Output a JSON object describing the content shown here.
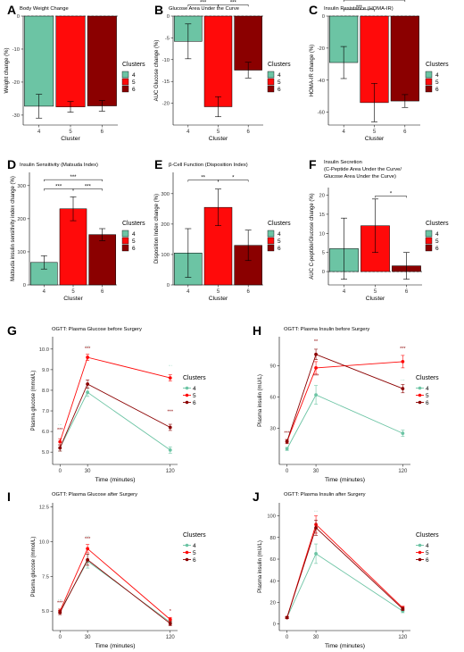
{
  "palette": {
    "c4": "#6cc4a4",
    "c5": "#ff0a0a",
    "c6": "#8b0000"
  },
  "cluster_names": [
    "4",
    "5",
    "6"
  ],
  "legend_title": "Clusters",
  "chart_data": [
    {
      "id": "A",
      "type": "bar",
      "letter": "A",
      "title": "Body Weight Change",
      "title2": "",
      "title3": "",
      "xlabel": "Cluster",
      "ylabel": "Weight change (%)",
      "categories": [
        "4",
        "5",
        "6"
      ],
      "values": [
        -27.3,
        -27.5,
        -27.2
      ],
      "errors": [
        3.6,
        1.6,
        1.6
      ],
      "ylim": [
        -33,
        0
      ],
      "yticks": [
        0,
        -10,
        -20,
        -30
      ],
      "zero_line": true,
      "legend_position": "right",
      "significance": []
    },
    {
      "id": "B",
      "type": "bar",
      "letter": "B",
      "title": "Glucose Area Under the Curve",
      "title2": "",
      "title3": "",
      "xlabel": "Cluster",
      "ylabel": "AUC Glucose change (%)",
      "categories": [
        "4",
        "5",
        "6"
      ],
      "values": [
        -5.8,
        -20.8,
        -12.4
      ],
      "errors": [
        4.0,
        2.3,
        1.8
      ],
      "ylim": [
        -25,
        0
      ],
      "yticks": [
        0,
        -5,
        -10,
        -15,
        -20
      ],
      "zero_line": true,
      "legend_position": "right",
      "significance": [
        {
          "from": 0,
          "to": 1,
          "y": 2.6,
          "label": "***"
        },
        {
          "from": 1,
          "to": 2,
          "y": 2.6,
          "label": "***"
        },
        {
          "from": 0,
          "to": 2,
          "y": 4.8,
          "label": "***"
        }
      ]
    },
    {
      "id": "C",
      "type": "bar",
      "letter": "C",
      "title": "Insulin Resistance (HOMA-IR)",
      "title2": "",
      "title3": "",
      "xlabel": "Cluster",
      "ylabel": "HOMA-IR change (%)",
      "categories": [
        "4",
        "5",
        "6"
      ],
      "values": [
        -29,
        -54,
        -53
      ],
      "errors": [
        10,
        12,
        4
      ],
      "ylim": [
        -68,
        0
      ],
      "yticks": [
        0,
        -20,
        -40,
        -60
      ],
      "zero_line": true,
      "legend_position": "right",
      "significance": [
        {
          "from": 0,
          "to": 1,
          "y": 4,
          "label": "***"
        },
        {
          "from": 0,
          "to": 2,
          "y": 10,
          "label": "***"
        }
      ]
    },
    {
      "id": "D",
      "type": "bar",
      "letter": "D",
      "title": "Insulin Sensitivity (Matsuda Index)",
      "title2": "",
      "title3": "",
      "xlabel": "Cluster",
      "ylabel": "Matsuda insulin sensitivity index change (%)",
      "categories": [
        "4",
        "5",
        "6"
      ],
      "values": [
        68,
        230,
        152
      ],
      "errors": [
        20,
        36,
        18
      ],
      "ylim": [
        0,
        340
      ],
      "yticks": [
        0,
        100,
        200,
        300
      ],
      "zero_line": false,
      "legend_position": "right",
      "significance": [
        {
          "from": 0,
          "to": 1,
          "y": 290,
          "label": "***"
        },
        {
          "from": 1,
          "to": 2,
          "y": 290,
          "label": "***"
        },
        {
          "from": 0,
          "to": 2,
          "y": 318,
          "label": "***"
        }
      ]
    },
    {
      "id": "E",
      "type": "bar",
      "letter": "E",
      "title": "β-Cell Function (Disposition Index)",
      "title2": "",
      "title3": "",
      "xlabel": "Cluster",
      "ylabel": "Disposition Index change (%)",
      "categories": [
        "4",
        "5",
        "6"
      ],
      "values": [
        105,
        255,
        130
      ],
      "errors": [
        80,
        60,
        50
      ],
      "ylim": [
        0,
        370
      ],
      "yticks": [
        0,
        100,
        200,
        300
      ],
      "zero_line": false,
      "legend_position": "right",
      "significance": [
        {
          "from": 0,
          "to": 1,
          "y": 345,
          "label": "**"
        },
        {
          "from": 1,
          "to": 2,
          "y": 345,
          "label": "*"
        }
      ]
    },
    {
      "id": "F",
      "type": "bar",
      "letter": "F",
      "title": "Insulin Secretion",
      "title2": "(C-Peptide Area Under the Curve/",
      "title3": "Glucose Area Under the Curve)",
      "xlabel": "Cluster",
      "ylabel": "AUC C-peptide/Glucose change (%)",
      "categories": [
        "4",
        "5",
        "6"
      ],
      "values": [
        6,
        12,
        1.5
      ],
      "errors": [
        8,
        7,
        3.5
      ],
      "ylim": [
        -3.5,
        22
      ],
      "yticks": [
        0,
        5,
        10,
        15,
        20
      ],
      "zero_line": true,
      "legend_position": "right",
      "significance": [
        {
          "from": 1,
          "to": 2,
          "y": 19.8,
          "label": "*"
        }
      ]
    },
    {
      "id": "G",
      "type": "line",
      "letter": "G",
      "title": "OGTT: Plasma Glucose before Surgery",
      "xlabel": "Time (minutes)",
      "ylabel": "Plasma glucose (mmol/L)",
      "x": [
        0,
        30,
        120
      ],
      "xticks": [
        0,
        30,
        120
      ],
      "xlim": [
        -8,
        128
      ],
      "ylim": [
        4.4,
        10.6
      ],
      "yticks": [
        5.0,
        6.0,
        7.0,
        8.0,
        9.0,
        10.0
      ],
      "ytick_labels": [
        "5.0",
        "6.0",
        "7.0",
        "8.0",
        "9.0",
        "10.0"
      ],
      "legend_position": "right",
      "series": [
        {
          "name": "4",
          "values": [
            5.2,
            7.9,
            5.1
          ],
          "errors": [
            0.15,
            0.2,
            0.15
          ]
        },
        {
          "name": "5",
          "values": [
            5.5,
            9.6,
            8.6
          ],
          "errors": [
            0.15,
            0.15,
            0.15
          ]
        },
        {
          "name": "6",
          "values": [
            5.2,
            8.3,
            6.2
          ],
          "errors": [
            0.15,
            0.2,
            0.15
          ]
        }
      ],
      "annotations": [
        {
          "x": 0,
          "y": 6.3,
          "label": "...",
          "series": "4"
        },
        {
          "x": 0,
          "y": 6.0,
          "label": "***",
          "series": "6"
        },
        {
          "x": 30,
          "y": 10.15,
          "label": "...",
          "series": "4"
        },
        {
          "x": 30,
          "y": 9.95,
          "label": "***",
          "series": "6"
        },
        {
          "x": 120,
          "y": 9.2,
          "label": "...",
          "series": "4"
        },
        {
          "x": 120,
          "y": 6.9,
          "label": "***",
          "series": "6"
        }
      ]
    },
    {
      "id": "H",
      "type": "line",
      "letter": "H",
      "title": "OGTT: Plasma Insulin before Surgery",
      "xlabel": "Time (minutes)",
      "ylabel": "Plasma insulin (mU/L)",
      "x": [
        0,
        30,
        120
      ],
      "xticks": [
        0,
        30,
        120
      ],
      "xlim": [
        -8,
        128
      ],
      "ylim": [
        -5,
        118
      ],
      "yticks": [
        30,
        60,
        90
      ],
      "ytick_labels": [
        "30",
        "60",
        "90"
      ],
      "legend_position": "right",
      "series": [
        {
          "name": "4",
          "values": [
            10,
            62,
            25
          ],
          "errors": [
            1.5,
            9,
            3
          ]
        },
        {
          "name": "5",
          "values": [
            17,
            88,
            94
          ],
          "errors": [
            2,
            6,
            6
          ]
        },
        {
          "name": "6",
          "values": [
            17,
            101,
            68
          ],
          "errors": [
            2,
            5,
            4
          ]
        }
      ],
      "annotations": [
        {
          "x": 0,
          "y": 24,
          "label": "***",
          "series": "6"
        },
        {
          "x": 30,
          "y": 112,
          "label": "**",
          "series": "6"
        },
        {
          "x": 30,
          "y": 79,
          "label": "***",
          "series": "6"
        },
        {
          "x": 120,
          "y": 105,
          "label": "***",
          "series": "6"
        },
        {
          "x": 120,
          "y": 76,
          "label": "...",
          "series": "4"
        }
      ]
    },
    {
      "id": "I",
      "type": "line",
      "letter": "I",
      "title": "OGTT: Plasma Glucose after Surgery",
      "xlabel": "Time (minutes)",
      "ylabel": "Plasma glucose (mmol/L)",
      "x": [
        0,
        30,
        120
      ],
      "xticks": [
        0,
        30,
        120
      ],
      "xlim": [
        -8,
        128
      ],
      "ylim": [
        3.6,
        12.8
      ],
      "yticks": [
        5.0,
        7.5,
        10.0,
        12.5
      ],
      "ytick_labels": [
        "5.0",
        "7.5",
        "10.0",
        "12.5"
      ],
      "legend_position": "right",
      "series": [
        {
          "name": "4",
          "values": [
            5.0,
            8.6,
            4.2
          ],
          "errors": [
            0.15,
            0.5,
            0.15
          ]
        },
        {
          "name": "5",
          "values": [
            5.0,
            9.5,
            4.4
          ],
          "errors": [
            0.15,
            0.3,
            0.15
          ]
        },
        {
          "name": "6",
          "values": [
            4.9,
            8.7,
            4.1
          ],
          "errors": [
            0.15,
            0.4,
            0.15
          ]
        }
      ],
      "annotations": [
        {
          "x": 0,
          "y": 5.8,
          "label": "...",
          "series": "4"
        },
        {
          "x": 0,
          "y": 5.5,
          "label": "***",
          "series": "6"
        },
        {
          "x": 30,
          "y": 10.4,
          "label": "...",
          "series": "4"
        },
        {
          "x": 30,
          "y": 10.1,
          "label": "***",
          "series": "6"
        },
        {
          "x": 120,
          "y": 4.9,
          "label": "*",
          "series": "6"
        }
      ]
    },
    {
      "id": "J",
      "type": "line",
      "letter": "J",
      "title": "OGTT: Plasma Insulin after Surgery",
      "xlabel": "Time (minutes)",
      "ylabel": "Plasma insulin (mU/L)",
      "x": [
        0,
        30,
        120
      ],
      "xticks": [
        0,
        30,
        120
      ],
      "xlim": [
        -8,
        128
      ],
      "ylim": [
        -6,
        112
      ],
      "yticks": [
        0,
        20,
        40,
        60,
        80,
        100
      ],
      "ytick_labels": [
        "0",
        "20",
        "40",
        "60",
        "80",
        "100"
      ],
      "legend_position": "right",
      "series": [
        {
          "name": "4",
          "values": [
            6,
            65,
            12
          ],
          "errors": [
            1,
            9,
            1.5
          ]
        },
        {
          "name": "5",
          "values": [
            6,
            92,
            15
          ],
          "errors": [
            1,
            8,
            1.5
          ]
        },
        {
          "name": "6",
          "values": [
            6,
            89,
            14
          ],
          "errors": [
            1,
            7,
            1.5
          ]
        }
      ],
      "annotations": [
        {
          "x": 30,
          "y": 104,
          "label": "...",
          "series": "4"
        }
      ]
    }
  ]
}
